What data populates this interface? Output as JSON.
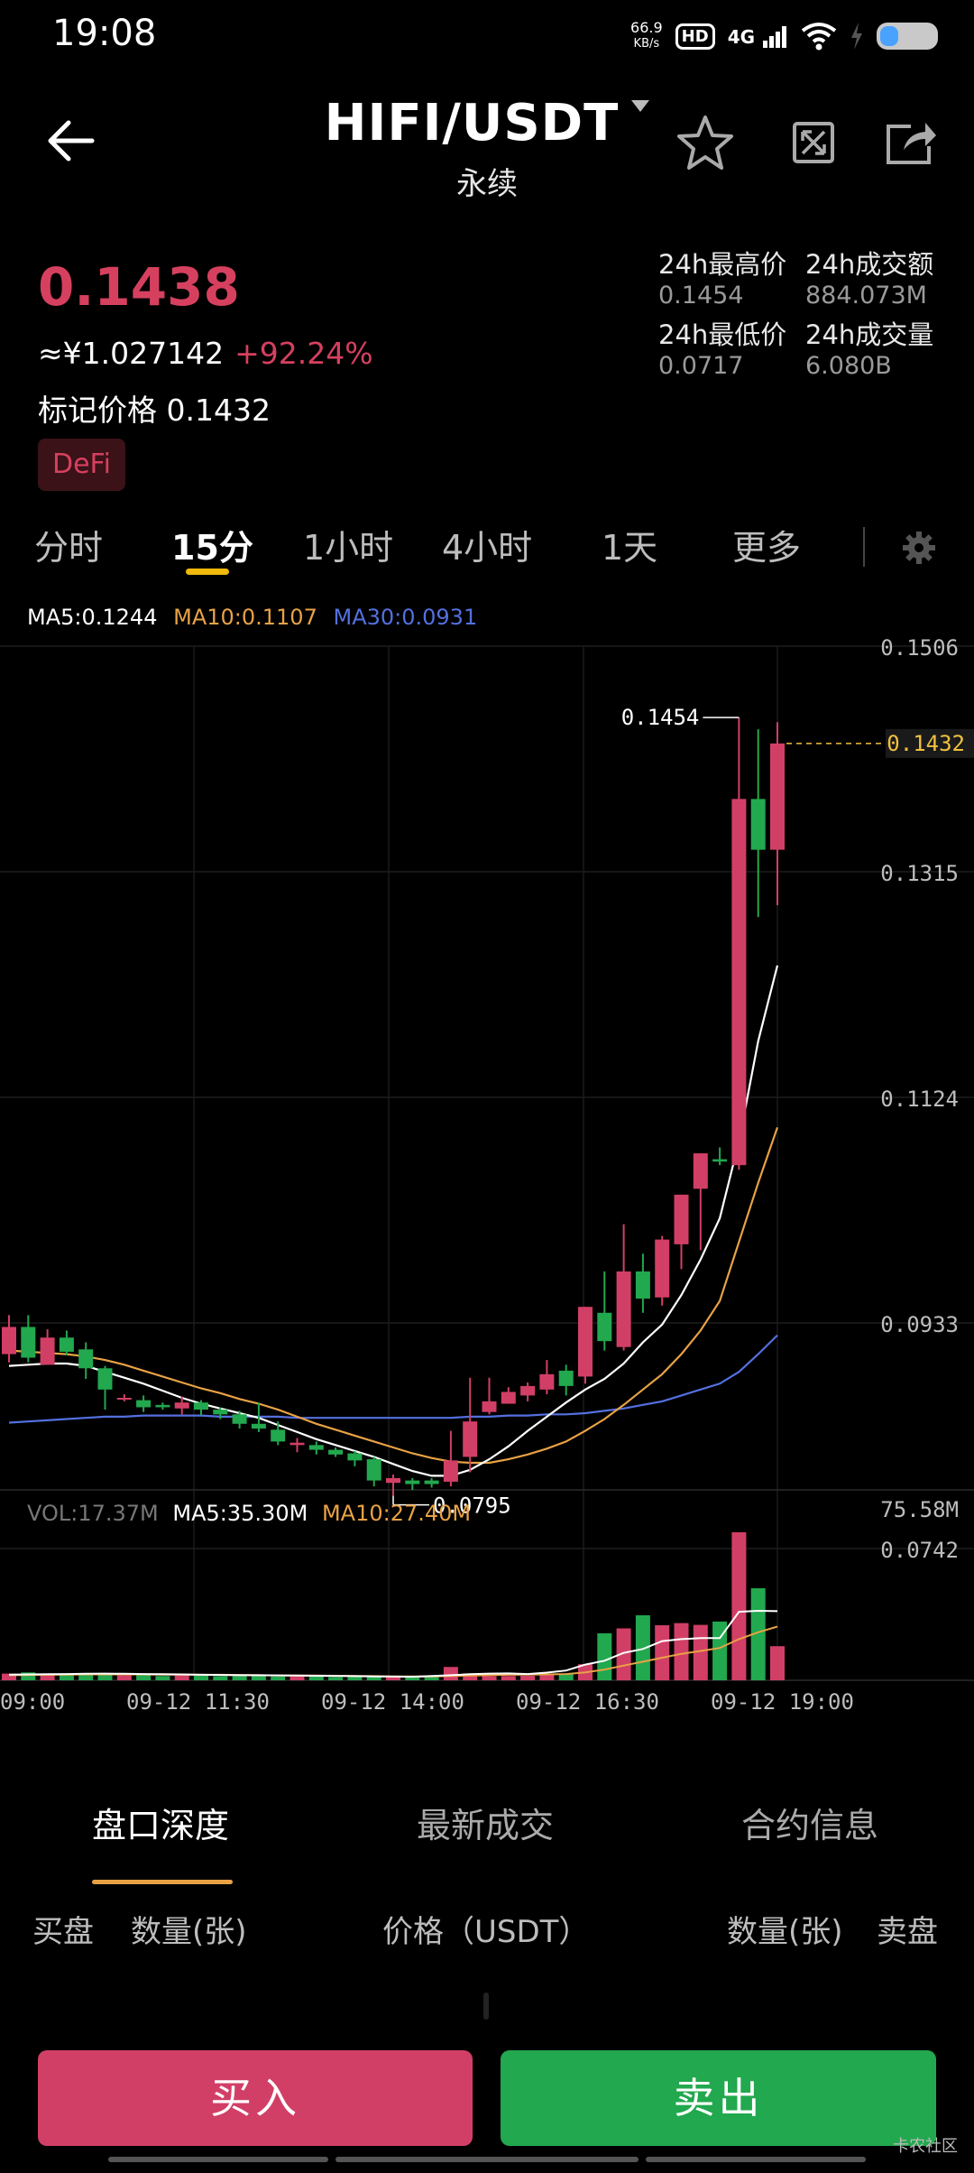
{
  "status_bar": {
    "time": "19:08",
    "net_speed_value": "66.9",
    "net_speed_unit": "KB/s",
    "hd_label": "HD",
    "network": "4G",
    "icons": [
      "wifi-icon",
      "charging-icon",
      "battery-icon"
    ]
  },
  "header": {
    "pair": "HIFI/USDT",
    "contract_type": "永续",
    "icons": [
      "back-arrow-icon",
      "dropdown-caret-icon",
      "star-icon",
      "fullscreen-icon",
      "share-icon"
    ]
  },
  "ticker": {
    "last_price": "0.1438",
    "cny_price": "≈¥1.027142",
    "change_pct": "+92.24%",
    "mark_price_label": "标记价格",
    "mark_price": "0.1432",
    "tag": "DeFi",
    "high_label": "24h最高价",
    "high_value": "0.1454",
    "turnover_label": "24h成交额",
    "turnover_value": "884.073M",
    "low_label": "24h最低价",
    "low_value": "0.0717",
    "volume_label": "24h成交量",
    "volume_value": "6.080B"
  },
  "timeframes": {
    "items": [
      "分时",
      "15分",
      "1小时",
      "4小时",
      "1天",
      "更多"
    ],
    "active": "15分",
    "settings_icon": "gear-icon"
  },
  "ma_legend": {
    "ma5": "MA5:0.1244",
    "ma10": "MA10:0.1107",
    "ma30": "MA30:0.0931"
  },
  "vol_legend": {
    "vol": "VOL:17.37M",
    "ma5": "MA5:35.30M",
    "ma10": "MA10:27.40M"
  },
  "colors": {
    "up": "#d23f66",
    "down": "#22a84e",
    "ma5": "#ffffff",
    "ma10": "#e8a245",
    "ma30": "#5470e0",
    "mark_line": "#f0c040",
    "accent": "#f0b90b"
  },
  "chart_data": {
    "type": "candlestick",
    "y_tick_labels": [
      "0.1506",
      "0.1315",
      "0.1124",
      "0.0933",
      "0.0742"
    ],
    "ylim": [
      0.0742,
      0.1506
    ],
    "x_tick_labels": [
      "09:00",
      "09-12 11:30",
      "09-12 14:00",
      "09-12 16:30",
      "09-12 19:00"
    ],
    "current_price_label": "0.1432",
    "high_annotation": "0.1454",
    "low_annotation": "0.0795",
    "volume_max_label": "75.58M",
    "volume_ylim": [
      0,
      75.58
    ],
    "candles": [
      {
        "o": 0.0915,
        "h": 0.0948,
        "l": 0.0908,
        "c": 0.0938
      },
      {
        "o": 0.0938,
        "h": 0.0948,
        "l": 0.0908,
        "c": 0.0912
      },
      {
        "o": 0.0906,
        "h": 0.0936,
        "l": 0.0906,
        "c": 0.0929
      },
      {
        "o": 0.0929,
        "h": 0.0935,
        "l": 0.0914,
        "c": 0.0917
      },
      {
        "o": 0.0919,
        "h": 0.0925,
        "l": 0.0894,
        "c": 0.0903
      },
      {
        "o": 0.0903,
        "h": 0.0905,
        "l": 0.0868,
        "c": 0.0885
      },
      {
        "o": 0.0878,
        "h": 0.0881,
        "l": 0.0875,
        "c": 0.0878
      },
      {
        "o": 0.0876,
        "h": 0.088,
        "l": 0.0866,
        "c": 0.087
      },
      {
        "o": 0.0872,
        "h": 0.0874,
        "l": 0.0868,
        "c": 0.087
      },
      {
        "o": 0.0869,
        "h": 0.0879,
        "l": 0.0864,
        "c": 0.0874
      },
      {
        "o": 0.0874,
        "h": 0.0876,
        "l": 0.0863,
        "c": 0.0868
      },
      {
        "o": 0.0868,
        "h": 0.087,
        "l": 0.086,
        "c": 0.0864
      },
      {
        "o": 0.0864,
        "h": 0.0867,
        "l": 0.0852,
        "c": 0.0856
      },
      {
        "o": 0.0856,
        "h": 0.0874,
        "l": 0.0849,
        "c": 0.0852
      },
      {
        "o": 0.0851,
        "h": 0.0858,
        "l": 0.0838,
        "c": 0.0841
      },
      {
        "o": 0.0838,
        "h": 0.0844,
        "l": 0.0832,
        "c": 0.084
      },
      {
        "o": 0.0838,
        "h": 0.0841,
        "l": 0.083,
        "c": 0.0834
      },
      {
        "o": 0.0834,
        "h": 0.0836,
        "l": 0.0828,
        "c": 0.083
      },
      {
        "o": 0.0831,
        "h": 0.0833,
        "l": 0.082,
        "c": 0.0825
      },
      {
        "o": 0.0826,
        "h": 0.0828,
        "l": 0.0803,
        "c": 0.0808
      },
      {
        "o": 0.0806,
        "h": 0.0813,
        "l": 0.0795,
        "c": 0.081
      },
      {
        "o": 0.0808,
        "h": 0.081,
        "l": 0.08,
        "c": 0.0805
      },
      {
        "o": 0.0808,
        "h": 0.081,
        "l": 0.0802,
        "c": 0.0805
      },
      {
        "o": 0.0807,
        "h": 0.085,
        "l": 0.0803,
        "c": 0.0825
      },
      {
        "o": 0.0828,
        "h": 0.0895,
        "l": 0.0815,
        "c": 0.0858
      },
      {
        "o": 0.0866,
        "h": 0.0895,
        "l": 0.0864,
        "c": 0.0875
      },
      {
        "o": 0.0873,
        "h": 0.0887,
        "l": 0.0873,
        "c": 0.0883
      },
      {
        "o": 0.088,
        "h": 0.0891,
        "l": 0.0875,
        "c": 0.0888
      },
      {
        "o": 0.0885,
        "h": 0.091,
        "l": 0.0881,
        "c": 0.0898
      },
      {
        "o": 0.0901,
        "h": 0.0906,
        "l": 0.088,
        "c": 0.0888
      },
      {
        "o": 0.0896,
        "h": 0.0955,
        "l": 0.089,
        "c": 0.0955
      },
      {
        "o": 0.095,
        "h": 0.0985,
        "l": 0.0918,
        "c": 0.0926
      },
      {
        "o": 0.0921,
        "h": 0.1025,
        "l": 0.0918,
        "c": 0.0985
      },
      {
        "o": 0.0985,
        "h": 0.1,
        "l": 0.095,
        "c": 0.0962
      },
      {
        "o": 0.0963,
        "h": 0.1015,
        "l": 0.0956,
        "c": 0.1012
      },
      {
        "o": 0.1008,
        "h": 0.1045,
        "l": 0.0987,
        "c": 0.105
      },
      {
        "o": 0.1055,
        "h": 0.1083,
        "l": 0.1003,
        "c": 0.1085
      },
      {
        "o": 0.108,
        "h": 0.109,
        "l": 0.1075,
        "c": 0.1078
      },
      {
        "o": 0.1075,
        "h": 0.1454,
        "l": 0.1071,
        "c": 0.1385
      },
      {
        "o": 0.1385,
        "h": 0.1444,
        "l": 0.1285,
        "c": 0.1342
      },
      {
        "o": 0.1342,
        "h": 0.145,
        "l": 0.1295,
        "c": 0.1432
      }
    ],
    "volumes": [
      3.4,
      4.0,
      3.2,
      3.1,
      3.5,
      3.7,
      2.5,
      2.6,
      2.2,
      2.5,
      2.3,
      2.1,
      2.1,
      2.4,
      1.9,
      1.9,
      2.0,
      1.6,
      1.7,
      1.8,
      1.7,
      1.6,
      2.2,
      6.8,
      3.5,
      2.1,
      2.2,
      2.3,
      3.1,
      3.4,
      8.2,
      24.0,
      26.5,
      33.2,
      28.1,
      29.2,
      28.3,
      30.0,
      75.6,
      47.0,
      17.4
    ],
    "ma5": [
      0.0905,
      0.0906,
      0.0907,
      0.0907,
      0.0905,
      0.09,
      0.0895,
      0.089,
      0.0884,
      0.0878,
      0.0873,
      0.0869,
      0.0865,
      0.0861,
      0.0855,
      0.0849,
      0.0843,
      0.0838,
      0.0833,
      0.0828,
      0.0822,
      0.0816,
      0.0812,
      0.0812,
      0.0817,
      0.0826,
      0.0837,
      0.085,
      0.0862,
      0.0874,
      0.0885,
      0.0894,
      0.0907,
      0.0925,
      0.094,
      0.0965,
      0.0995,
      0.103,
      0.1095,
      0.118,
      0.1244
    ],
    "ma10": [
      0.0918,
      0.0917,
      0.0916,
      0.0915,
      0.0913,
      0.091,
      0.0906,
      0.0901,
      0.0896,
      0.0891,
      0.0886,
      0.0882,
      0.0877,
      0.0873,
      0.0868,
      0.0862,
      0.0856,
      0.0851,
      0.0846,
      0.0841,
      0.0836,
      0.0831,
      0.0827,
      0.0824,
      0.0823,
      0.0823,
      0.0826,
      0.083,
      0.0835,
      0.0841,
      0.085,
      0.086,
      0.0872,
      0.0885,
      0.0898,
      0.0915,
      0.0935,
      0.096,
      0.101,
      0.106,
      0.1107
    ],
    "ma30": [
      0.0857,
      0.0858,
      0.0859,
      0.086,
      0.0861,
      0.0862,
      0.0862,
      0.0863,
      0.0863,
      0.0863,
      0.0863,
      0.0862,
      0.0862,
      0.0862,
      0.0862,
      0.0861,
      0.0861,
      0.0861,
      0.0861,
      0.0861,
      0.0861,
      0.0861,
      0.0861,
      0.0861,
      0.0862,
      0.0862,
      0.0863,
      0.0863,
      0.0864,
      0.0864,
      0.0865,
      0.0867,
      0.0869,
      0.0872,
      0.0875,
      0.088,
      0.0885,
      0.089,
      0.09,
      0.0915,
      0.0931
    ],
    "vol_ma5": [
      2.9,
      3.0,
      3.1,
      3.2,
      3.3,
      3.4,
      3.3,
      3.2,
      3.1,
      3.0,
      2.8,
      2.7,
      2.6,
      2.6,
      2.5,
      2.4,
      2.3,
      2.2,
      2.1,
      2.0,
      1.9,
      1.8,
      2.2,
      2.6,
      3.1,
      3.4,
      3.5,
      3.2,
      3.9,
      5.0,
      8.0,
      10.0,
      14.0,
      16.0,
      20.0,
      21.0,
      21.5,
      21.5,
      35.0,
      35.5,
      35.3
    ],
    "vol_ma10": [
      2.6,
      2.7,
      2.8,
      2.9,
      3.0,
      3.0,
      3.0,
      3.0,
      2.9,
      2.9,
      2.8,
      2.8,
      2.7,
      2.6,
      2.5,
      2.4,
      2.4,
      2.3,
      2.2,
      2.1,
      2.0,
      2.0,
      2.0,
      2.2,
      2.4,
      2.6,
      2.8,
      2.9,
      3.0,
      3.2,
      4.0,
      5.5,
      7.5,
      9.5,
      11.5,
      13.5,
      15.0,
      16.5,
      21.0,
      24.5,
      27.4
    ]
  },
  "bottom_tabs": {
    "items": [
      "盘口深度",
      "最新成交",
      "合约信息"
    ],
    "active": "盘口深度"
  },
  "order_book_headers": {
    "buy": "买盘",
    "qty_left": "数量(张)",
    "price": "价格（USDT）",
    "qty_right": "数量(张)",
    "sell": "卖盘"
  },
  "actions": {
    "buy": "买入",
    "sell": "卖出"
  },
  "watermark": "卡农社区"
}
